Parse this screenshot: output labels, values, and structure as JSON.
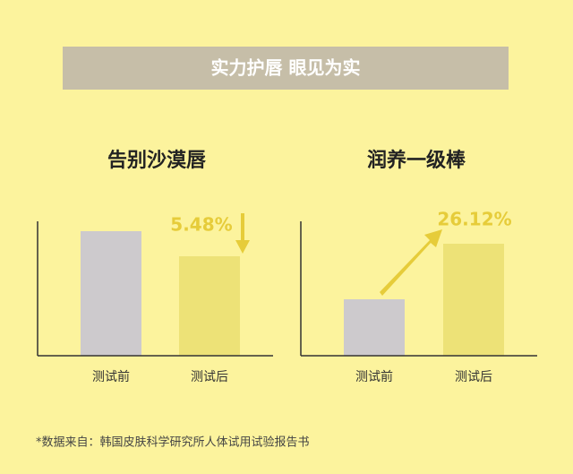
{
  "banner": "实力护唇 眼见为实",
  "chart_data": [
    {
      "type": "bar",
      "title": "告别沙漠唇",
      "categories": [
        "测试前",
        "测试后"
      ],
      "values": [
        139,
        111
      ],
      "colors": [
        "#cdcacd",
        "#ede277"
      ],
      "ylim": [
        0,
        150
      ],
      "annotation": "5.48%"
    },
    {
      "type": "bar",
      "title": "润养一级棒",
      "categories": [
        "测试前",
        "测试后"
      ],
      "values": [
        63,
        125
      ],
      "colors": [
        "#cdcacd",
        "#ede277"
      ],
      "ylim": [
        0,
        150
      ],
      "annotation": "26.12%"
    }
  ],
  "footnote": "*数据来自：韩国皮肤科学研究所人体试用试验报告书"
}
